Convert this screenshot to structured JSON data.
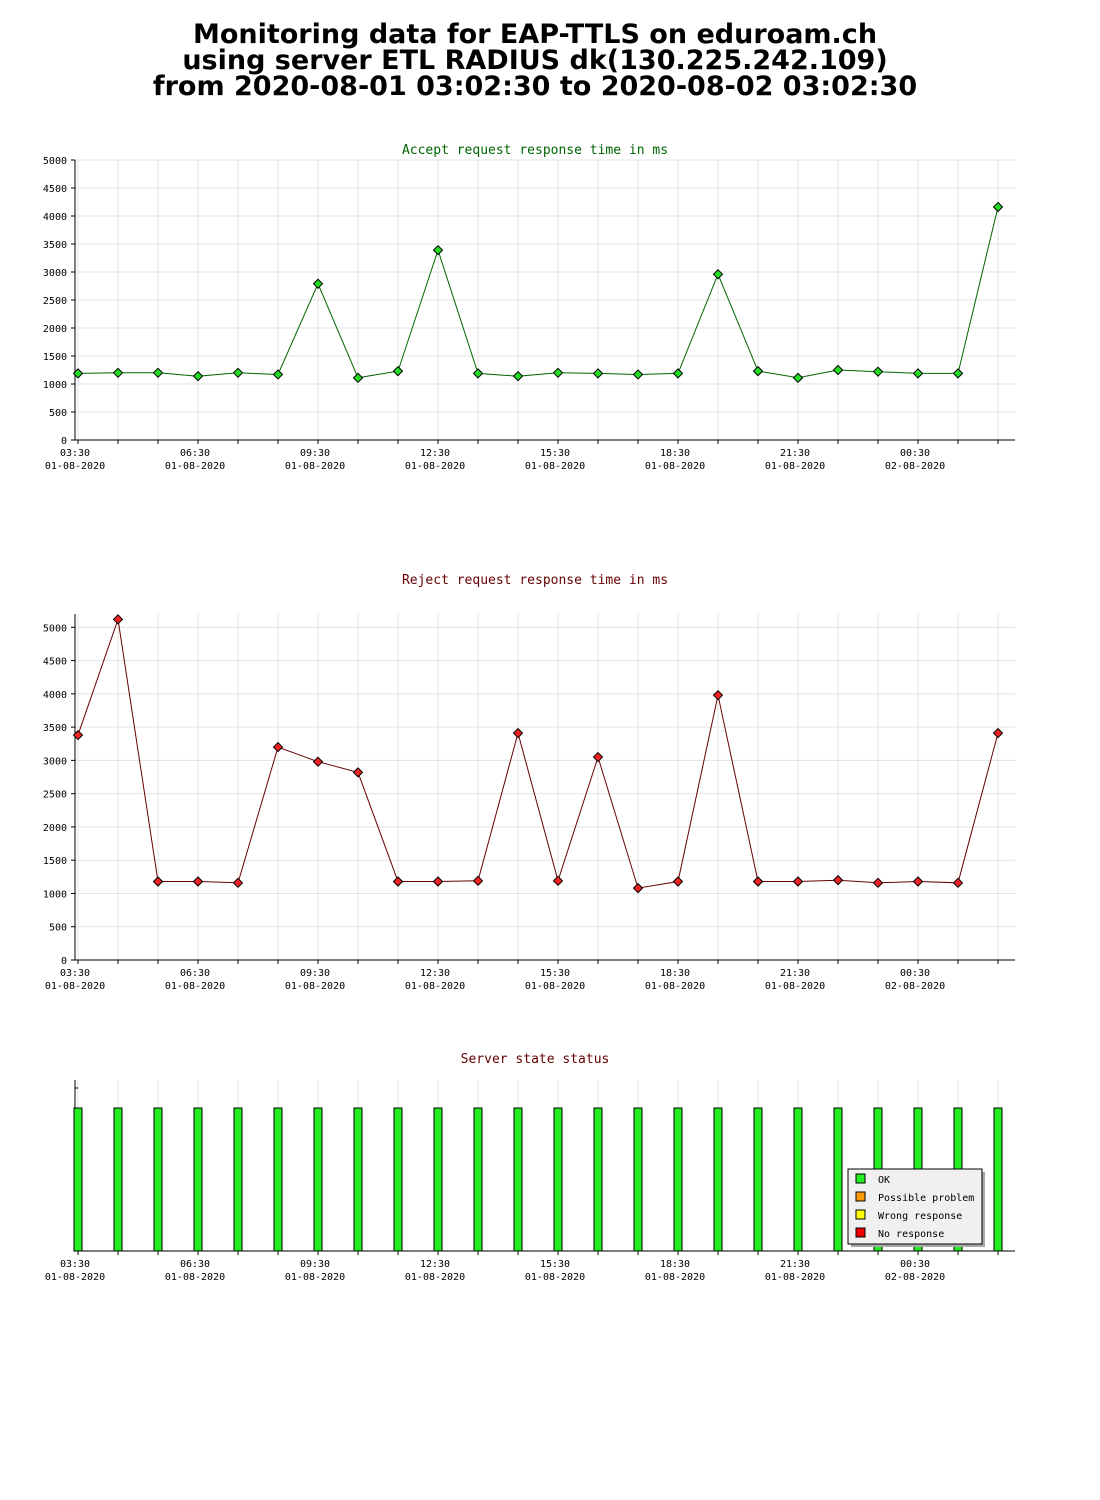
{
  "header": {
    "line1": "Monitoring data for EAP-TTLS on eduroam.ch",
    "line2": "using server ETL RADIUS dk(130.225.242.109)",
    "line3": "from 2020-08-01 03:02:30 to 2020-08-02 03:02:30"
  },
  "x_ticks": [
    {
      "time": "03:30",
      "date": "01-08-2020",
      "index": 0
    },
    {
      "time": "06:30",
      "date": "01-08-2020",
      "index": 3
    },
    {
      "time": "09:30",
      "date": "01-08-2020",
      "index": 6
    },
    {
      "time": "12:30",
      "date": "01-08-2020",
      "index": 9
    },
    {
      "time": "15:30",
      "date": "01-08-2020",
      "index": 12
    },
    {
      "time": "18:30",
      "date": "01-08-2020",
      "index": 15
    },
    {
      "time": "21:30",
      "date": "01-08-2020",
      "index": 18
    },
    {
      "time": "00:30",
      "date": "02-08-2020",
      "index": 21
    }
  ],
  "chart_data": [
    {
      "type": "line",
      "title": "Accept request response time in ms",
      "title_color": "#006400",
      "line_color": "#006400",
      "marker_color": "#22dd22",
      "ylim": [
        0,
        5000
      ],
      "yticks": [
        0,
        500,
        1000,
        1500,
        2000,
        2500,
        3000,
        3500,
        4000,
        4500,
        5000
      ],
      "grid": true,
      "values": [
        1190,
        1200,
        1200,
        1140,
        1200,
        1170,
        2790,
        1110,
        1230,
        3390,
        1190,
        1140,
        1200,
        1190,
        1170,
        1190,
        2960,
        1230,
        1110,
        1250,
        1220,
        1190,
        1190,
        4160
      ]
    },
    {
      "type": "line",
      "title": "Reject request response time in ms",
      "title_color": "#660000",
      "line_color": "#660000",
      "marker_color": "#ee2222",
      "ylim": [
        0,
        5200
      ],
      "yticks": [
        0,
        500,
        1000,
        1500,
        2000,
        2500,
        3000,
        3500,
        4000,
        4500,
        5000
      ],
      "grid": true,
      "values": [
        3380,
        5120,
        1180,
        1180,
        1160,
        3200,
        2980,
        2820,
        1180,
        1180,
        1190,
        3410,
        1190,
        3050,
        1080,
        1180,
        3980,
        1180,
        1180,
        1200,
        1160,
        1180,
        1160,
        3410
      ]
    },
    {
      "type": "bar",
      "title": "Server state status",
      "title_color": "#660000",
      "bar_color": "#22ee22",
      "states": [
        "OK",
        "OK",
        "OK",
        "OK",
        "OK",
        "OK",
        "OK",
        "OK",
        "OK",
        "OK",
        "OK",
        "OK",
        "OK",
        "OK",
        "OK",
        "OK",
        "OK",
        "OK",
        "OK",
        "OK",
        "OK",
        "OK",
        "OK",
        "OK"
      ],
      "legend": [
        {
          "label": "OK",
          "color": "#22ee22"
        },
        {
          "label": "Possible problem",
          "color": "#ff9900"
        },
        {
          "label": "Wrong response",
          "color": "#ffff00"
        },
        {
          "label": "No response",
          "color": "#ee0000"
        }
      ],
      "legend_position": "bottom-right"
    }
  ]
}
